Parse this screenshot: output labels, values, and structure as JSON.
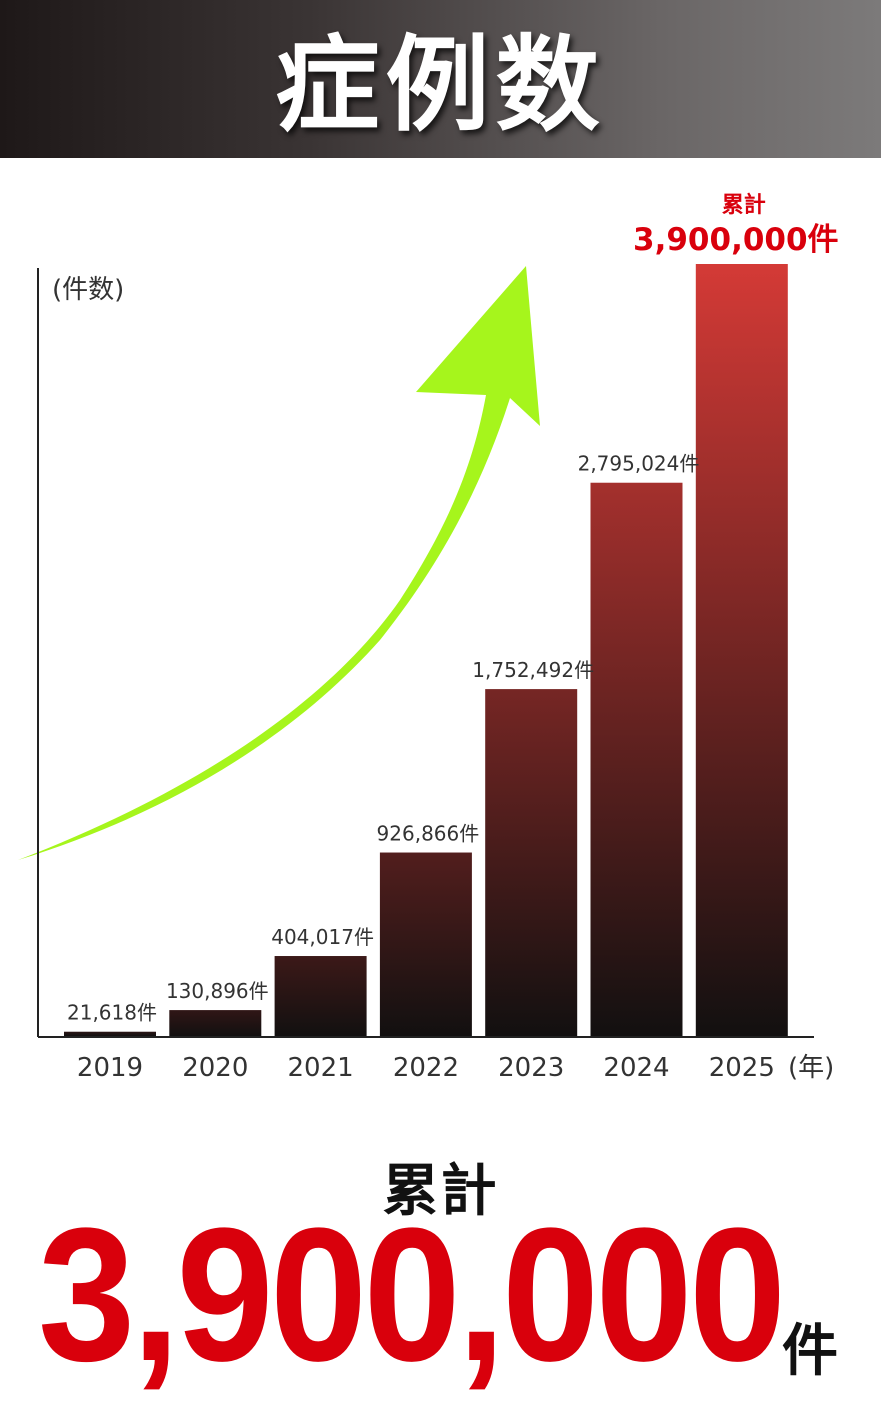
{
  "header": {
    "title": "症例数"
  },
  "chart_data": {
    "type": "bar",
    "y_unit_label": "(件数)",
    "x_unit_label": "(年)",
    "categories": [
      "2019",
      "2020",
      "2021",
      "2022",
      "2023",
      "2024",
      "2025"
    ],
    "values": [
      21618,
      130896,
      404017,
      926866,
      1752492,
      2795024,
      3900000
    ],
    "data_labels": [
      "21,618件",
      "130,896件",
      "404,017件",
      "926,866件",
      "1,752,492件",
      "2,795,024件",
      "3,900,000件"
    ],
    "highlight": {
      "index": 6,
      "prefix": "累計",
      "label": "3,900,000件",
      "color": "#d9000c"
    },
    "ylim": [
      0,
      3900000
    ],
    "grid": false,
    "bar_colors": {
      "bottom": "#121010",
      "top_low": "#2a1515",
      "top_high": "#d43a36"
    },
    "arrow_color": "#a6f51c"
  },
  "summary": {
    "label": "累計",
    "value": "3,900,000",
    "unit": "件"
  }
}
